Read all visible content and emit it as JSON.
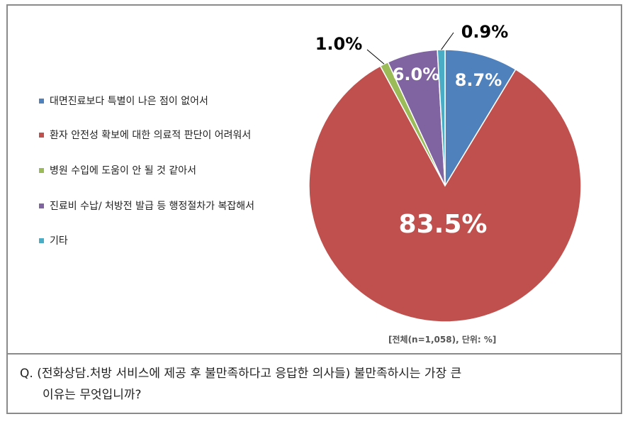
{
  "chart_data": {
    "type": "pie",
    "categories": [
      "대면진료보다 특별이 나은 점이 없어서",
      "환자 안전성 확보에 대한 의료적 판단이 어려워서",
      "병원 수입에 도움이 안 될 것 같아서",
      "진료비 수납/ 처방전 발급 등 행정절차가 복잡해서",
      "기타"
    ],
    "values": [
      8.7,
      83.5,
      1.0,
      6.0,
      0.9
    ],
    "value_labels": [
      "8.7%",
      "83.5%",
      "1.0%",
      "6.0%",
      "0.9%"
    ],
    "colors": [
      "#4f81bd",
      "#c0504d",
      "#9bbb59",
      "#8064a2",
      "#4bacc6"
    ],
    "legend_position": "left"
  },
  "source_note": "[전체(n=1,058), 단위: %]",
  "question": {
    "line1": "Q. (전화상담.처방 서비스에 제공 후 불만족하다고 응답한 의사들) 불만족하시는 가장 큰",
    "line2": "이유는 무엇입니까?"
  }
}
